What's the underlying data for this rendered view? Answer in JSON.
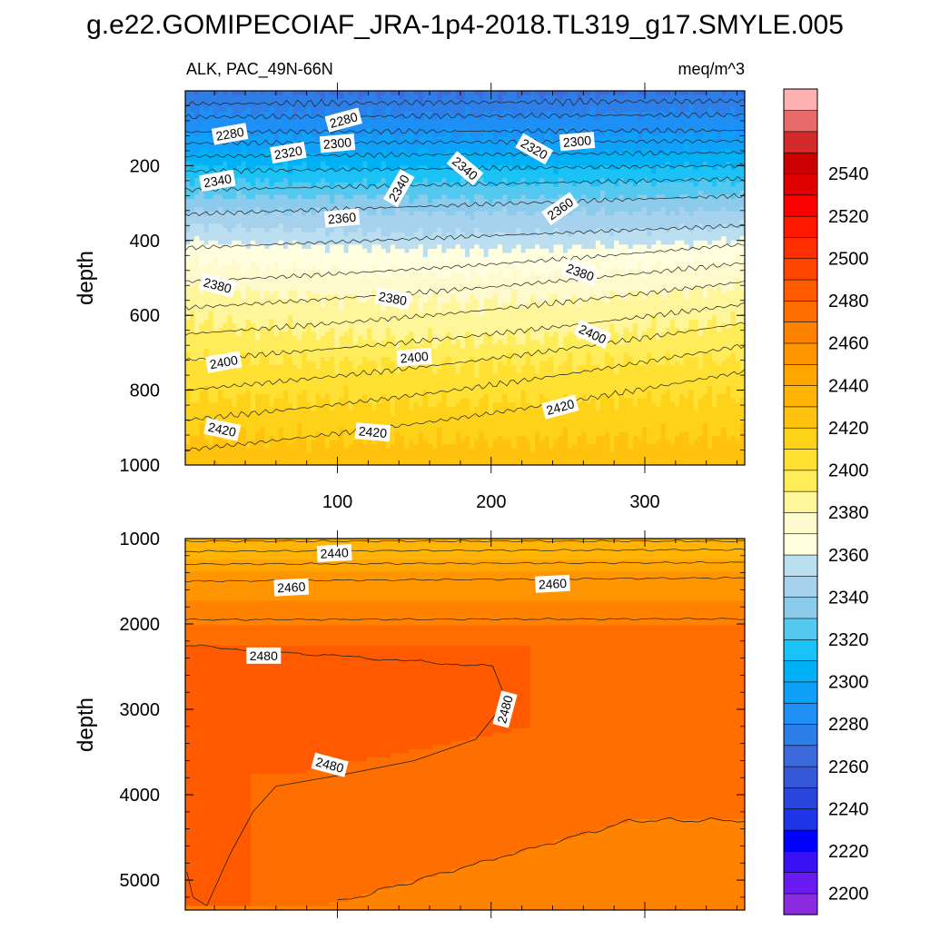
{
  "figure": {
    "title": "g.e22.GOMIPECOIAF_JRA-1p4-2018.TL319_g17.SMYLE.005",
    "left_subtitle": "ALK, PAC_49N-66N",
    "right_subtitle": "meq/m^3"
  },
  "chart_data": [
    {
      "type": "contour",
      "panel": "upper",
      "variable": "ALK",
      "region": "PAC_49N-66N",
      "units": "meq/m^3",
      "ylabel": "depth",
      "y_inverted": true,
      "xlim": [
        1,
        365
      ],
      "ylim": [
        0,
        1000
      ],
      "x_ticks": [
        100,
        200,
        300
      ],
      "x_tick_labels": [
        "100",
        "200",
        "300"
      ],
      "y_ticks": [
        200,
        400,
        600,
        800,
        1000
      ],
      "y_tick_labels": [
        "200",
        "400",
        "600",
        "800",
        "1000"
      ],
      "contour_levels_shown": [
        2280,
        2300,
        2320,
        2340,
        2360,
        2380,
        2400,
        2420
      ],
      "contour_labels": [
        {
          "text": "2280",
          "x": 30,
          "y": 115
        },
        {
          "text": "2280",
          "x": 104,
          "y": 78
        },
        {
          "text": "2300",
          "x": 100,
          "y": 140
        },
        {
          "text": "2300",
          "x": 256,
          "y": 135
        },
        {
          "text": "2320",
          "x": 68,
          "y": 165
        },
        {
          "text": "2320",
          "x": 228,
          "y": 155
        },
        {
          "text": "2340",
          "x": 22,
          "y": 240
        },
        {
          "text": "2340",
          "x": 140,
          "y": 260
        },
        {
          "text": "2340",
          "x": 183,
          "y": 207
        },
        {
          "text": "2360",
          "x": 103,
          "y": 340
        },
        {
          "text": "2360",
          "x": 245,
          "y": 315
        },
        {
          "text": "2380",
          "x": 22,
          "y": 520
        },
        {
          "text": "2380",
          "x": 136,
          "y": 555
        },
        {
          "text": "2380",
          "x": 258,
          "y": 485
        },
        {
          "text": "2400",
          "x": 26,
          "y": 725
        },
        {
          "text": "2400",
          "x": 150,
          "y": 712
        },
        {
          "text": "2400",
          "x": 266,
          "y": 650
        },
        {
          "text": "2420",
          "x": 25,
          "y": 905
        },
        {
          "text": "2420",
          "x": 123,
          "y": 912
        },
        {
          "text": "2420",
          "x": 245,
          "y": 845
        }
      ]
    },
    {
      "type": "contour",
      "panel": "lower",
      "variable": "ALK",
      "units": "meq/m^3",
      "ylabel": "depth",
      "y_inverted": true,
      "xlim": [
        1,
        365
      ],
      "ylim": [
        1000,
        5350
      ],
      "y_ticks": [
        1000,
        2000,
        3000,
        4000,
        5000
      ],
      "y_tick_labels": [
        "1000",
        "2000",
        "3000",
        "4000",
        "5000"
      ],
      "contour_levels_shown": [
        2440,
        2460,
        2480
      ],
      "contour_labels": [
        {
          "text": "2440",
          "x": 98,
          "y": 1170
        },
        {
          "text": "2460",
          "x": 70,
          "y": 1570
        },
        {
          "text": "2460",
          "x": 240,
          "y": 1530
        },
        {
          "text": "2480",
          "x": 52,
          "y": 2370
        },
        {
          "text": "2480",
          "x": 209,
          "y": 3000
        },
        {
          "text": "2480",
          "x": 95,
          "y": 3650
        }
      ]
    }
  ],
  "colorbar": {
    "levels": [
      2200,
      2210,
      2220,
      2230,
      2240,
      2250,
      2260,
      2270,
      2280,
      2290,
      2300,
      2310,
      2320,
      2330,
      2340,
      2350,
      2360,
      2370,
      2380,
      2390,
      2400,
      2410,
      2420,
      2430,
      2440,
      2450,
      2460,
      2470,
      2480,
      2490,
      2500,
      2510,
      2520,
      2530,
      2540,
      2550
    ],
    "label_values": [
      "2200",
      "2220",
      "2240",
      "2260",
      "2280",
      "2300",
      "2320",
      "2340",
      "2360",
      "2380",
      "2400",
      "2420",
      "2440",
      "2460",
      "2480",
      "2500",
      "2520",
      "2540"
    ],
    "colors": [
      "#8A2BE2",
      "#6A1BF0",
      "#3A10F5",
      "#0000FF",
      "#1E35E8",
      "#2A45DC",
      "#3558D8",
      "#3C6ADD",
      "#2E7EE8",
      "#1E90F5",
      "#0FA0FA",
      "#00B2F5",
      "#1AC2F5",
      "#55C8F0",
      "#8CCBEB",
      "#A6D2EE",
      "#BBDFF0",
      "#FFFFE0",
      "#FFFACD",
      "#FFF59A",
      "#FFEC5A",
      "#FFE033",
      "#FFD21A",
      "#FFC20E",
      "#FFB406",
      "#FFA600",
      "#FF9500",
      "#FF8200",
      "#FF6E00",
      "#FF5A00",
      "#FF4600",
      "#FF2E00",
      "#FF1800",
      "#FF0000",
      "#E00000",
      "#CC0000",
      "#D42A2A",
      "#E86A6A",
      "#FFB0B0"
    ]
  }
}
